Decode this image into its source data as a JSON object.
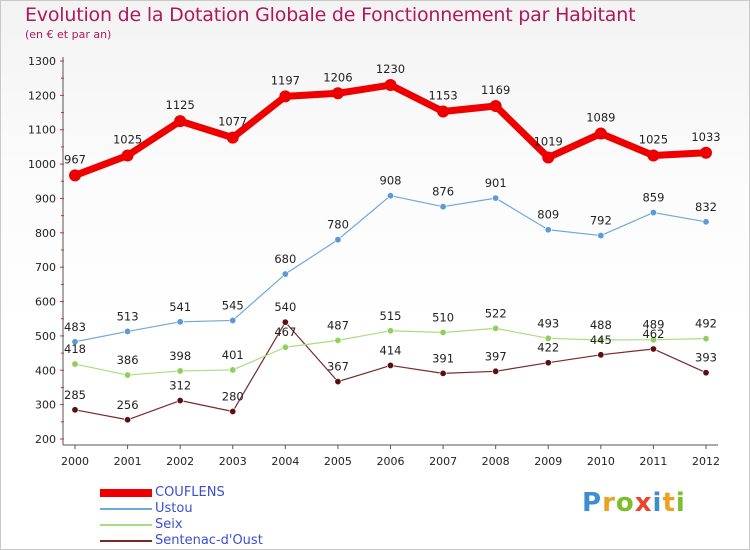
{
  "chart_data": {
    "type": "line",
    "title": "Evolution de la Dotation Globale de Fonctionnement par Habitant",
    "subtitle": "(en € et par an)",
    "xlabel": "",
    "ylabel": "",
    "x": [
      "2000",
      "2001",
      "2002",
      "2003",
      "2004",
      "2005",
      "2006",
      "2007",
      "2008",
      "2009",
      "2010",
      "2011",
      "2012"
    ],
    "yticks": [
      200,
      300,
      400,
      500,
      600,
      700,
      800,
      900,
      1000,
      1100,
      1200,
      1300
    ],
    "ylim": [
      200,
      1300
    ],
    "grid": false,
    "legend_position": "bottom-left",
    "series": [
      {
        "name": "COUFLENS",
        "color": "#ee0000",
        "values": [
          967,
          1025,
          1125,
          1077,
          1197,
          1206,
          1230,
          1153,
          1169,
          1019,
          1089,
          1025,
          1033
        ]
      },
      {
        "name": "Ustou",
        "color": "#5b9bd5",
        "values": [
          483,
          513,
          541,
          545,
          680,
          780,
          908,
          876,
          901,
          809,
          792,
          859,
          832
        ]
      },
      {
        "name": "Seix",
        "color": "#9ad66a",
        "values": [
          418,
          386,
          398,
          401,
          467,
          487,
          515,
          510,
          522,
          493,
          488,
          489,
          492
        ]
      },
      {
        "name": "Sentenac-d'Oust",
        "color": "#7a2020",
        "values": [
          285,
          256,
          312,
          280,
          540,
          367,
          414,
          391,
          397,
          422,
          445,
          462,
          393
        ]
      }
    ]
  },
  "logo": {
    "letters": [
      "P",
      "r",
      "o",
      "x",
      "i",
      "t",
      "i"
    ],
    "colors": [
      "#3c8ed0",
      "#f0a020",
      "#7cbf2a",
      "#e8452a",
      "#3c8ed0",
      "#f0a020",
      "#7cbf2a"
    ]
  }
}
